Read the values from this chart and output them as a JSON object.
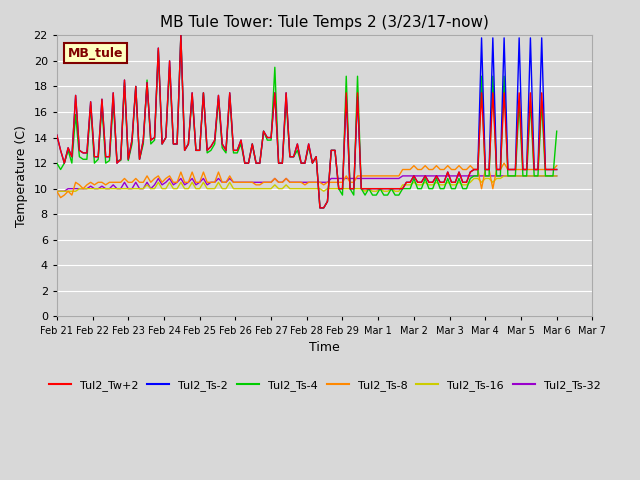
{
  "title": "MB Tule Tower: Tule Temps 2 (3/23/17-now)",
  "xlabel": "Time",
  "ylabel": "Temperature (C)",
  "ylim": [
    0,
    22
  ],
  "yticks": [
    0,
    2,
    4,
    6,
    8,
    10,
    12,
    14,
    16,
    18,
    20,
    22
  ],
  "bg_color": "#d8d8d8",
  "grid_color": "#ffffff",
  "label_box": {
    "text": "MB_tule",
    "facecolor": "#ffffc0",
    "edgecolor": "#800000",
    "textcolor": "#800000"
  },
  "series": {
    "Tul2_Tw+2": {
      "color": "#ff0000",
      "zorder": 5,
      "data_y": [
        14.2,
        13.0,
        12.0,
        13.2,
        12.5,
        17.3,
        13.0,
        12.8,
        12.8,
        16.8,
        12.5,
        12.5,
        17.0,
        12.5,
        12.5,
        17.5,
        12.0,
        12.3,
        18.5,
        12.3,
        13.8,
        18.0,
        12.3,
        13.8,
        18.3,
        13.8,
        14.0,
        21.0,
        13.5,
        14.0,
        20.0,
        13.5,
        13.5,
        22.0,
        13.0,
        13.5,
        17.5,
        13.0,
        13.0,
        17.5,
        13.0,
        13.3,
        13.8,
        17.3,
        13.5,
        13.0,
        17.5,
        13.0,
        13.0,
        13.8,
        12.0,
        12.0,
        13.5,
        12.0,
        12.0,
        14.5,
        14.0,
        14.0,
        17.5,
        12.0,
        12.0,
        17.5,
        12.5,
        12.5,
        13.5,
        12.0,
        12.0,
        13.5,
        12.0,
        12.5,
        8.5,
        8.5,
        9.0,
        13.0,
        13.0,
        10.0,
        10.0,
        17.5,
        10.0,
        10.0,
        17.5,
        10.0,
        10.0,
        10.0,
        10.0,
        10.0,
        10.0,
        10.0,
        10.0,
        10.0,
        10.0,
        10.0,
        10.0,
        10.5,
        10.5,
        11.0,
        10.5,
        10.5,
        11.0,
        10.5,
        10.5,
        11.0,
        10.5,
        10.5,
        11.3,
        10.5,
        10.5,
        11.3,
        10.5,
        10.5,
        11.3,
        11.5,
        11.5,
        17.5,
        11.5,
        11.5,
        17.5,
        11.5,
        11.5,
        17.5,
        11.5,
        11.5,
        11.5,
        17.5,
        11.5,
        11.5,
        17.5,
        11.5,
        11.5,
        17.5,
        11.5,
        11.5,
        11.5,
        11.5
      ]
    },
    "Tul2_Ts-2": {
      "color": "#0000ff",
      "zorder": 4,
      "data_y": [
        14.2,
        13.0,
        12.0,
        13.2,
        12.5,
        17.3,
        13.0,
        12.8,
        12.8,
        16.8,
        12.5,
        12.5,
        17.0,
        12.5,
        12.5,
        17.5,
        12.0,
        12.3,
        18.5,
        12.3,
        13.8,
        18.0,
        12.3,
        13.8,
        18.3,
        13.8,
        14.0,
        21.0,
        13.5,
        14.0,
        20.0,
        13.5,
        13.5,
        22.0,
        13.0,
        13.5,
        17.5,
        13.0,
        13.0,
        17.5,
        13.0,
        13.3,
        13.8,
        17.3,
        13.5,
        13.0,
        17.5,
        13.0,
        13.0,
        13.8,
        12.0,
        12.0,
        13.5,
        12.0,
        12.0,
        14.5,
        14.0,
        14.0,
        17.5,
        12.0,
        12.0,
        17.5,
        12.5,
        12.5,
        13.5,
        12.0,
        12.0,
        13.5,
        12.0,
        12.5,
        8.5,
        8.5,
        9.0,
        13.0,
        13.0,
        10.0,
        10.0,
        17.2,
        10.0,
        10.0,
        17.2,
        10.0,
        10.0,
        10.0,
        10.0,
        10.0,
        10.0,
        10.0,
        10.0,
        10.0,
        10.0,
        10.0,
        10.0,
        10.5,
        10.5,
        11.0,
        10.5,
        10.5,
        11.0,
        10.5,
        10.5,
        11.0,
        10.5,
        10.5,
        11.3,
        10.5,
        10.5,
        11.3,
        10.5,
        10.5,
        11.3,
        11.5,
        11.5,
        21.8,
        11.5,
        11.5,
        21.8,
        11.5,
        11.5,
        21.8,
        11.5,
        11.5,
        11.5,
        21.8,
        11.5,
        11.5,
        21.8,
        11.5,
        11.5,
        21.8,
        11.5,
        11.5,
        11.5,
        11.5
      ]
    },
    "Tul2_Ts-4": {
      "color": "#00cc00",
      "zorder": 3,
      "data_y": [
        12.0,
        11.5,
        12.0,
        13.0,
        12.0,
        15.8,
        12.5,
        12.3,
        12.3,
        16.5,
        12.0,
        12.3,
        16.5,
        12.0,
        12.2,
        16.8,
        12.2,
        12.2,
        18.3,
        12.2,
        13.5,
        18.0,
        12.3,
        13.5,
        18.5,
        13.5,
        13.8,
        20.8,
        13.5,
        14.0,
        19.5,
        13.5,
        13.5,
        22.0,
        13.0,
        13.5,
        17.2,
        13.0,
        13.0,
        17.5,
        12.8,
        13.0,
        13.5,
        17.0,
        13.2,
        12.8,
        17.3,
        12.8,
        12.8,
        13.5,
        12.0,
        12.0,
        13.5,
        12.0,
        12.0,
        14.5,
        13.8,
        13.8,
        19.5,
        12.0,
        12.0,
        17.0,
        12.5,
        12.5,
        13.0,
        12.0,
        12.0,
        13.3,
        12.0,
        12.5,
        8.5,
        8.5,
        9.0,
        13.0,
        13.0,
        10.0,
        9.5,
        18.8,
        10.0,
        9.5,
        18.8,
        10.0,
        9.5,
        10.0,
        9.5,
        9.5,
        10.0,
        9.5,
        9.5,
        10.0,
        9.5,
        9.5,
        10.0,
        10.0,
        10.0,
        10.8,
        10.0,
        10.0,
        10.8,
        10.0,
        10.0,
        10.8,
        10.0,
        10.0,
        10.8,
        10.0,
        10.0,
        10.8,
        10.0,
        10.0,
        10.8,
        11.0,
        11.0,
        18.8,
        11.0,
        11.0,
        18.8,
        11.0,
        11.0,
        18.8,
        11.0,
        11.0,
        11.0,
        16.8,
        11.0,
        11.0,
        16.8,
        11.0,
        11.0,
        16.8,
        11.0,
        11.0,
        11.0,
        14.5
      ]
    },
    "Tul2_Ts-8": {
      "color": "#ff8800",
      "zorder": 2,
      "data_y": [
        9.8,
        9.3,
        9.5,
        9.8,
        9.5,
        10.5,
        10.3,
        10.0,
        10.3,
        10.5,
        10.3,
        10.5,
        10.5,
        10.3,
        10.5,
        10.5,
        10.5,
        10.5,
        10.8,
        10.5,
        10.5,
        10.8,
        10.5,
        10.5,
        11.0,
        10.5,
        10.8,
        11.0,
        10.5,
        10.8,
        11.0,
        10.5,
        10.5,
        11.3,
        10.5,
        10.5,
        11.3,
        10.5,
        10.5,
        11.3,
        10.5,
        10.5,
        10.5,
        11.3,
        10.5,
        10.5,
        11.0,
        10.5,
        10.5,
        10.5,
        10.5,
        10.5,
        10.5,
        10.3,
        10.3,
        10.5,
        10.5,
        10.5,
        10.8,
        10.5,
        10.5,
        10.8,
        10.5,
        10.5,
        10.5,
        10.5,
        10.3,
        10.5,
        10.5,
        10.5,
        10.5,
        10.3,
        10.5,
        10.5,
        10.5,
        10.5,
        10.5,
        11.0,
        10.5,
        10.5,
        11.0,
        11.0,
        11.0,
        11.0,
        11.0,
        11.0,
        11.0,
        11.0,
        11.0,
        11.0,
        11.0,
        11.0,
        11.5,
        11.5,
        11.5,
        11.8,
        11.5,
        11.5,
        11.8,
        11.5,
        11.5,
        11.8,
        11.5,
        11.5,
        11.8,
        11.5,
        11.5,
        11.8,
        11.5,
        11.5,
        11.8,
        11.5,
        11.5,
        10.0,
        11.5,
        11.5,
        10.0,
        11.5,
        11.5,
        12.0,
        11.5,
        11.5,
        11.5,
        11.5,
        11.5,
        11.5,
        11.5,
        11.5,
        11.5,
        11.5,
        11.5,
        11.5,
        11.5,
        11.8
      ]
    },
    "Tul2_Ts-16": {
      "color": "#cccc00",
      "zorder": 1,
      "data_y": [
        9.8,
        9.8,
        9.8,
        9.8,
        9.8,
        9.8,
        10.0,
        10.0,
        10.0,
        10.0,
        10.0,
        10.0,
        10.0,
        10.0,
        10.0,
        10.0,
        10.0,
        10.0,
        10.0,
        10.0,
        10.0,
        10.0,
        10.0,
        10.0,
        10.3,
        10.0,
        10.0,
        10.5,
        10.0,
        10.0,
        10.5,
        10.0,
        10.0,
        10.5,
        10.0,
        10.0,
        10.5,
        10.0,
        10.0,
        10.5,
        10.0,
        10.0,
        10.0,
        10.5,
        10.0,
        10.0,
        10.5,
        10.0,
        10.0,
        10.0,
        10.0,
        10.0,
        10.0,
        10.0,
        10.0,
        10.0,
        10.0,
        10.0,
        10.3,
        10.0,
        10.0,
        10.3,
        10.0,
        10.0,
        10.0,
        10.0,
        10.0,
        10.0,
        10.0,
        10.0,
        10.0,
        9.8,
        10.0,
        10.0,
        10.0,
        10.0,
        10.0,
        10.0,
        10.0,
        10.0,
        10.0,
        10.0,
        9.8,
        10.0,
        9.8,
        9.8,
        10.0,
        9.8,
        9.8,
        10.0,
        9.8,
        9.8,
        10.3,
        10.3,
        10.3,
        10.5,
        10.3,
        10.3,
        10.5,
        10.3,
        10.3,
        10.5,
        10.3,
        10.3,
        10.5,
        10.3,
        10.3,
        10.5,
        10.3,
        10.3,
        10.5,
        10.8,
        10.8,
        10.5,
        10.8,
        10.8,
        10.5,
        10.8,
        10.8,
        11.0,
        11.0,
        11.0,
        11.0,
        11.0,
        11.0,
        11.0,
        11.0,
        11.0,
        11.0,
        11.0,
        11.0,
        11.0,
        11.0,
        11.0
      ]
    },
    "Tul2_Ts-32": {
      "color": "#9900cc",
      "zorder": 0,
      "data_y": [
        9.8,
        9.8,
        9.8,
        10.0,
        10.0,
        10.0,
        10.0,
        10.0,
        10.0,
        10.2,
        10.0,
        10.0,
        10.2,
        10.0,
        10.0,
        10.3,
        10.0,
        10.0,
        10.5,
        10.0,
        10.0,
        10.5,
        10.0,
        10.0,
        10.5,
        10.0,
        10.3,
        10.8,
        10.3,
        10.5,
        10.8,
        10.3,
        10.5,
        10.8,
        10.3,
        10.5,
        10.8,
        10.3,
        10.5,
        10.8,
        10.3,
        10.5,
        10.5,
        10.8,
        10.5,
        10.5,
        10.8,
        10.5,
        10.5,
        10.5,
        10.5,
        10.5,
        10.5,
        10.5,
        10.5,
        10.5,
        10.5,
        10.5,
        10.8,
        10.5,
        10.5,
        10.8,
        10.5,
        10.5,
        10.5,
        10.5,
        10.5,
        10.5,
        10.5,
        10.5,
        10.5,
        10.5,
        10.5,
        10.8,
        10.8,
        10.8,
        10.8,
        10.8,
        10.8,
        10.8,
        10.8,
        10.8,
        10.8,
        10.8,
        10.8,
        10.8,
        10.8,
        10.8,
        10.8,
        10.8,
        10.8,
        10.8,
        11.0,
        11.0,
        11.0,
        11.0,
        11.0,
        11.0,
        11.0,
        11.0,
        11.0,
        11.0,
        11.0,
        11.0,
        11.0,
        11.0,
        11.0,
        11.0,
        11.0,
        11.0,
        11.0,
        11.0,
        11.0,
        11.0,
        11.0,
        11.0,
        11.0,
        11.0,
        11.0,
        11.0,
        11.0,
        11.0,
        11.0,
        11.0,
        11.0,
        11.0,
        11.0,
        11.0,
        11.0,
        11.0,
        11.0,
        11.0,
        11.0,
        11.0
      ]
    }
  },
  "n_points": 134,
  "total_days": 14,
  "x_tick_labels": [
    "Feb 21",
    "Feb 22",
    "Feb 23",
    "Feb 24",
    "Feb 25",
    "Feb 26",
    "Feb 27",
    "Feb 28",
    "Feb 29",
    "Mar 1",
    "Mar 2",
    "Mar 3",
    "Mar 4",
    "Mar 5",
    "Mar 6",
    "Mar 7"
  ],
  "legend_entries": [
    {
      "label": "Tul2_Tw+2",
      "color": "#ff0000"
    },
    {
      "label": "Tul2_Ts-2",
      "color": "#0000ff"
    },
    {
      "label": "Tul2_Ts-4",
      "color": "#00cc00"
    },
    {
      "label": "Tul2_Ts-8",
      "color": "#ff8800"
    },
    {
      "label": "Tul2_Ts-16",
      "color": "#cccc00"
    },
    {
      "label": "Tul2_Ts-32",
      "color": "#9900cc"
    }
  ]
}
